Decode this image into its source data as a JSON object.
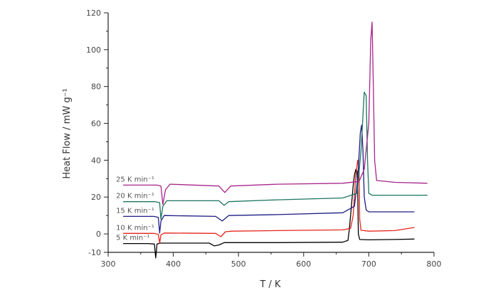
{
  "chart_data": {
    "type": "line",
    "xlabel": "T / K",
    "ylabel": "Heat Flow / mW g⁻¹",
    "xlim": [
      300,
      800
    ],
    "ylim": [
      -10,
      120
    ],
    "x_ticks": [
      "300",
      "400",
      "500",
      "600",
      "700",
      "800"
    ],
    "y_ticks": [
      "-10",
      "0",
      "10",
      "20",
      "30",
      "40",
      "50",
      "60",
      "70",
      "80",
      "90",
      "100",
      "110",
      "120"
    ],
    "y_tick_labels": [
      "-10",
      "0",
      "20",
      "40",
      "60",
      "80",
      "100",
      "120"
    ],
    "grid": false,
    "series": [
      {
        "name": "5 K min⁻¹",
        "color": "#000000",
        "points": [
          [
            323,
            -5.2
          ],
          [
            360,
            -5.2
          ],
          [
            371,
            -5.5
          ],
          [
            373,
            -13
          ],
          [
            375,
            -5.5
          ],
          [
            380,
            -5.0
          ],
          [
            455,
            -5.0
          ],
          [
            463,
            -6.5
          ],
          [
            470,
            -6.0
          ],
          [
            478,
            -4.7
          ],
          [
            560,
            -4.7
          ],
          [
            660,
            -4.5
          ],
          [
            668,
            -3.5
          ],
          [
            670,
            2
          ],
          [
            672,
            10
          ],
          [
            674,
            18
          ],
          [
            676,
            26
          ],
          [
            678,
            32
          ],
          [
            680,
            35
          ],
          [
            682,
            34
          ],
          [
            683,
            24
          ],
          [
            684,
            0
          ],
          [
            686,
            -3
          ],
          [
            700,
            -3.2
          ],
          [
            740,
            -3.0
          ],
          [
            770,
            -2.8
          ]
        ]
      },
      {
        "name": "10 K min⁻¹",
        "color": "#e8241c",
        "points": [
          [
            323,
            0.3
          ],
          [
            370,
            0.3
          ],
          [
            377,
            -0.2
          ],
          [
            379,
            -5
          ],
          [
            381,
            -0.5
          ],
          [
            386,
            0.5
          ],
          [
            465,
            0.3
          ],
          [
            473,
            -1.5
          ],
          [
            480,
            1.2
          ],
          [
            490,
            1.5
          ],
          [
            560,
            1.8
          ],
          [
            660,
            2.2
          ],
          [
            672,
            3
          ],
          [
            676,
            10
          ],
          [
            680,
            32
          ],
          [
            683,
            40
          ],
          [
            685,
            34
          ],
          [
            686,
            8
          ],
          [
            688,
            2
          ],
          [
            700,
            1.5
          ],
          [
            740,
            1.8
          ],
          [
            770,
            3.5
          ]
        ]
      },
      {
        "name": "15 K min⁻¹",
        "color": "#1c1c84",
        "points": [
          [
            323,
            9.5
          ],
          [
            370,
            9.5
          ],
          [
            377,
            9.0
          ],
          [
            379,
            0.5
          ],
          [
            381,
            7
          ],
          [
            386,
            10
          ],
          [
            465,
            9.5
          ],
          [
            475,
            7
          ],
          [
            485,
            10
          ],
          [
            560,
            10.5
          ],
          [
            660,
            11.5
          ],
          [
            678,
            15
          ],
          [
            683,
            30
          ],
          [
            687,
            55
          ],
          [
            689,
            59
          ],
          [
            691,
            45
          ],
          [
            693,
            20
          ],
          [
            696,
            13
          ],
          [
            700,
            12
          ],
          [
            740,
            12
          ],
          [
            770,
            12
          ]
        ]
      },
      {
        "name": "20 K min⁻¹",
        "color": "#1c7460",
        "points": [
          [
            323,
            17.5
          ],
          [
            372,
            17.5
          ],
          [
            379,
            17
          ],
          [
            381,
            8
          ],
          [
            384,
            15
          ],
          [
            390,
            18
          ],
          [
            470,
            18
          ],
          [
            478,
            15.5
          ],
          [
            485,
            17.5
          ],
          [
            560,
            18.5
          ],
          [
            660,
            19.5
          ],
          [
            682,
            22
          ],
          [
            688,
            45
          ],
          [
            693,
            77
          ],
          [
            696,
            75
          ],
          [
            698,
            40
          ],
          [
            700,
            22
          ],
          [
            705,
            21
          ],
          [
            740,
            21
          ],
          [
            790,
            21
          ]
        ]
      },
      {
        "name": "25 K min⁻¹",
        "color": "#a8248c",
        "points": [
          [
            323,
            26.5
          ],
          [
            375,
            26.5
          ],
          [
            381,
            26
          ],
          [
            384,
            16
          ],
          [
            388,
            24
          ],
          [
            395,
            27
          ],
          [
            470,
            26
          ],
          [
            479,
            22.5
          ],
          [
            488,
            26
          ],
          [
            560,
            27
          ],
          [
            660,
            27.5
          ],
          [
            685,
            28.5
          ],
          [
            693,
            35
          ],
          [
            700,
            60
          ],
          [
            703,
            105
          ],
          [
            705,
            115
          ],
          [
            707,
            80
          ],
          [
            709,
            40
          ],
          [
            712,
            29
          ],
          [
            740,
            28
          ],
          [
            790,
            27.5
          ]
        ]
      }
    ]
  }
}
